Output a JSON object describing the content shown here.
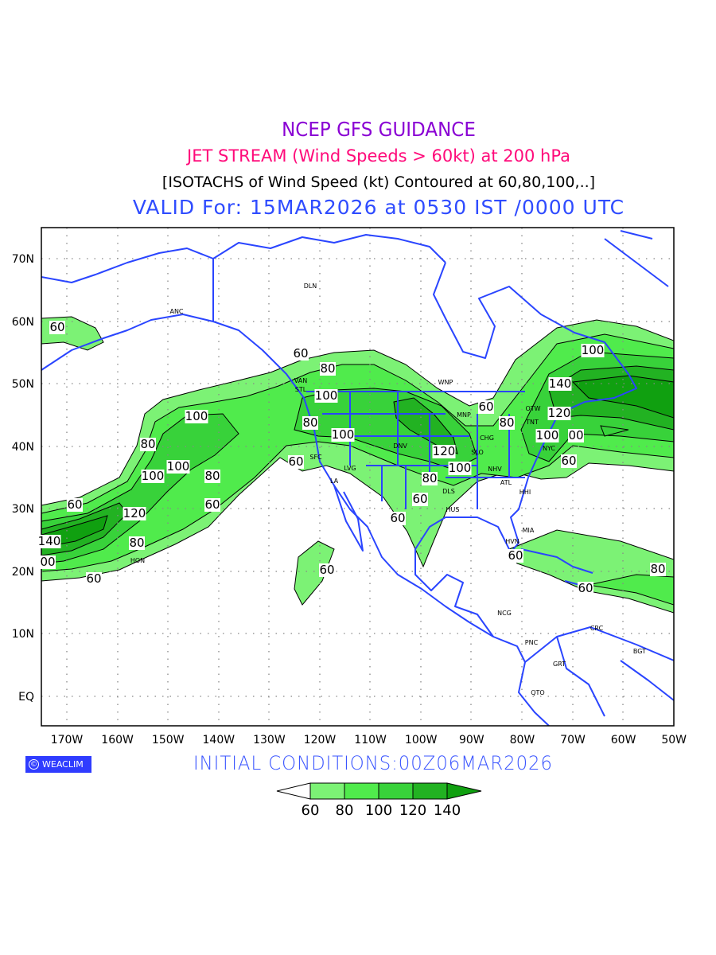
{
  "header": {
    "title": "NCEP GFS GUIDANCE",
    "subtitle": "JET STREAM (Wind Speeds > 60kt) at 200 hPa",
    "description": "[ISOTACHS of Wind Speed (kt) Contoured at 60,80,100,..]",
    "valid": "VALID For: 15MAR2026 at 0530 IST /0000 UTC"
  },
  "map": {
    "lat_labels": [
      "70N",
      "60N",
      "50N",
      "40N",
      "30N",
      "20N",
      "10N",
      "EQ"
    ],
    "lon_labels": [
      "170W",
      "160W",
      "150W",
      "140W",
      "130W",
      "120W",
      "110W",
      "100W",
      "90W",
      "80W",
      "70W",
      "60W",
      "50W"
    ],
    "contour_labels": [
      "60",
      "60",
      "80",
      "100",
      "80",
      "100",
      "60",
      "100",
      "80",
      "100",
      "100",
      "80",
      "60",
      "60",
      "120",
      "80",
      "140",
      "00",
      "60",
      "60",
      "60",
      "60",
      "80",
      "100",
      "120",
      "60",
      "80",
      "100",
      "140",
      "120",
      "100",
      "00",
      "60",
      "60",
      "60",
      "80"
    ],
    "stations": [
      "DLN",
      "ANC",
      "VAN",
      "STL",
      "WNP",
      "MNP",
      "CHG",
      "TNT",
      "OTW",
      "NYC",
      "SFC",
      "LVG",
      "LA",
      "DNV",
      "SLO",
      "NHV",
      "ATL",
      "HHI",
      "DLS",
      "HUS",
      "MIA",
      "HVN",
      "HON",
      "NCG",
      "PNC",
      "CRC",
      "BGT",
      "GRT",
      "QTO"
    ],
    "colors": {
      "band_60_80": "#7cf275",
      "band_80_100": "#50eb4c",
      "band_100_120": "#38d23a",
      "band_120_140": "#22b222",
      "band_140_plus": "#10a010",
      "coastline": "#2a45ff"
    }
  },
  "footer": {
    "logo": "WEACLIM",
    "logo_symbol": "©",
    "initial_conditions": "INITIAL  CONDITIONS:00Z06MAR2026"
  },
  "legend": {
    "unit": "kt",
    "levels": [
      "60",
      "80",
      "100",
      "120",
      "140"
    ]
  }
}
